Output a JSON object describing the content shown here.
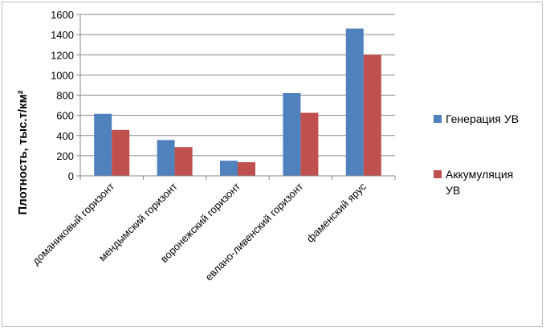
{
  "chart_data": {
    "type": "bar",
    "title": "",
    "xlabel": "",
    "ylabel": "Плотность, тыс.т/км²",
    "ylim": [
      0,
      1600
    ],
    "yticks": [
      0,
      200,
      400,
      600,
      800,
      1000,
      1200,
      1400,
      1600
    ],
    "grid": true,
    "legend_position": "right",
    "categories": [
      "доманиковый горизонт",
      "мендымский горизонт",
      "воронежский горизонт",
      "евлано-ливенский горизонт",
      "фаменский ярус"
    ],
    "series": [
      {
        "name": "Генерация УВ",
        "color": "#4F81BD",
        "values": [
          615,
          355,
          150,
          820,
          1460
        ]
      },
      {
        "name": "Аккумуляция УВ",
        "color": "#C0504D",
        "values": [
          455,
          285,
          135,
          625,
          1200
        ]
      }
    ]
  }
}
